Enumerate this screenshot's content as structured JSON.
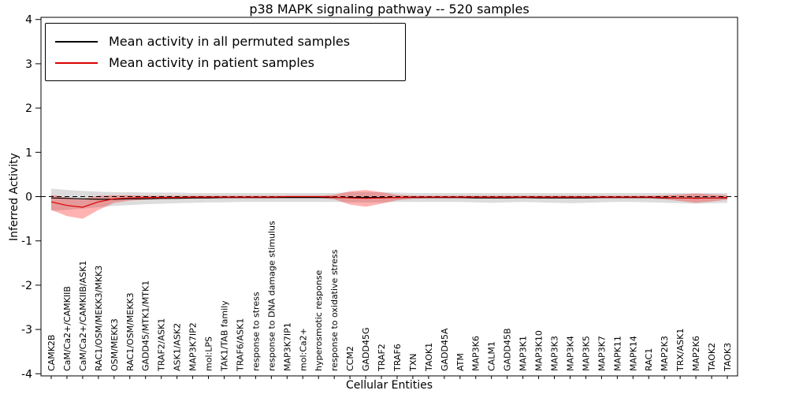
{
  "figure": {
    "title": "p38 MAPK signaling pathway -- 520 samples",
    "xlabel": "Cellular Entities",
    "ylabel": "Inferred Activity"
  },
  "legend": {
    "items": [
      {
        "label": "Mean activity in all permuted samples",
        "color": "#000000"
      },
      {
        "label": "Mean activity in patient samples",
        "color": "#dd0000"
      }
    ]
  },
  "chart_data": {
    "type": "line",
    "title": "p38 MAPK signaling pathway -- 520 samples",
    "xlabel": "Cellular Entities",
    "ylabel": "Inferred Activity",
    "ylim": [
      -4,
      4
    ],
    "yticks": [
      -4,
      -3,
      -2,
      -1,
      0,
      1,
      2,
      3,
      4
    ],
    "grid": false,
    "legend_position": "upper left",
    "zero_line": {
      "style": "dashed",
      "color": "#000000",
      "y": 0
    },
    "categories": [
      "CAMK2B",
      "CaM/Ca2+/CAMKIIB",
      "CaM/Ca2+/CAMKIIB/ASK1",
      "RAC1/OSM/MEKK3/MKK3",
      "OSM/MEKK3",
      "RAC1/OSM/MEKK3",
      "GADD45/MTK1/MTK1",
      "TRAF2/ASK1",
      "ASK1/ASK2",
      "MAP3K7IP2",
      "mol:LPS",
      "TAK1/TAB family",
      "TRAF6/ASK1",
      "response to stress",
      "response to DNA damage stimulus",
      "MAP3K7IP1",
      "mol:Ca2+",
      "hyperosmotic response",
      "response to oxidative stress",
      "CCM2",
      "GADD45G",
      "TRAF2",
      "TRAF6",
      "TXN",
      "TAOK1",
      "GADD45A",
      "ATM",
      "MAP3K6",
      "CALM1",
      "GADD45B",
      "MAP3K1",
      "MAP3K10",
      "MAP3K3",
      "MAP3K4",
      "MAP3K5",
      "MAP3K7",
      "MAPK11",
      "MAPK14",
      "RAC1",
      "MAP2K3",
      "TRX/ASK1",
      "MAP2K6",
      "TAOK2",
      "TAOK3"
    ],
    "series": [
      {
        "key": "permuted_mean",
        "name": "Mean activity in all permuted samples",
        "color": "#000000",
        "values": [
          -0.03,
          -0.04,
          -0.05,
          -0.06,
          -0.06,
          -0.05,
          -0.05,
          -0.04,
          -0.04,
          -0.03,
          -0.03,
          -0.02,
          -0.02,
          -0.02,
          -0.02,
          -0.02,
          -0.02,
          -0.02,
          -0.02,
          -0.02,
          -0.02,
          -0.02,
          -0.02,
          -0.02,
          -0.02,
          -0.02,
          -0.02,
          -0.03,
          -0.03,
          -0.03,
          -0.02,
          -0.03,
          -0.03,
          -0.03,
          -0.03,
          -0.02,
          -0.02,
          -0.02,
          -0.02,
          -0.03,
          -0.03,
          -0.03,
          -0.03,
          -0.03
        ]
      },
      {
        "key": "patient_mean",
        "name": "Mean activity in patient samples",
        "color": "#dd0000",
        "values": [
          -0.12,
          -0.2,
          -0.24,
          -0.12,
          -0.05,
          -0.03,
          -0.02,
          -0.02,
          -0.02,
          -0.01,
          -0.01,
          -0.01,
          -0.01,
          -0.01,
          -0.01,
          0.0,
          0.0,
          0.0,
          -0.01,
          -0.03,
          -0.04,
          -0.03,
          -0.02,
          -0.01,
          -0.01,
          -0.01,
          -0.01,
          -0.01,
          -0.01,
          -0.01,
          -0.01,
          -0.01,
          -0.01,
          -0.01,
          -0.01,
          -0.01,
          -0.01,
          -0.01,
          -0.01,
          -0.02,
          -0.03,
          -0.04,
          -0.03,
          -0.02
        ]
      }
    ],
    "bands": [
      {
        "key": "permuted_range",
        "name": "permuted-samples-range",
        "color": "#bfbfbf",
        "opacity": 0.55,
        "upper": [
          0.18,
          0.15,
          0.13,
          0.11,
          0.1,
          0.1,
          0.09,
          0.09,
          0.09,
          0.08,
          0.08,
          0.08,
          0.08,
          0.08,
          0.08,
          0.08,
          0.08,
          0.08,
          0.08,
          0.1,
          0.1,
          0.1,
          0.09,
          0.08,
          0.08,
          0.08,
          0.08,
          0.08,
          0.08,
          0.08,
          0.08,
          0.08,
          0.08,
          0.08,
          0.08,
          0.08,
          0.08,
          0.08,
          0.08,
          0.08,
          0.08,
          0.08,
          0.08,
          0.08
        ],
        "lower": [
          -0.32,
          -0.3,
          -0.27,
          -0.24,
          -0.21,
          -0.19,
          -0.17,
          -0.16,
          -0.15,
          -0.14,
          -0.13,
          -0.13,
          -0.12,
          -0.12,
          -0.12,
          -0.12,
          -0.12,
          -0.12,
          -0.12,
          -0.13,
          -0.13,
          -0.13,
          -0.12,
          -0.12,
          -0.12,
          -0.12,
          -0.12,
          -0.13,
          -0.14,
          -0.13,
          -0.12,
          -0.13,
          -0.14,
          -0.15,
          -0.14,
          -0.13,
          -0.12,
          -0.12,
          -0.13,
          -0.14,
          -0.15,
          -0.16,
          -0.15,
          -0.14
        ]
      },
      {
        "key": "patient_range",
        "name": "patient-samples-range",
        "color": "#ff0000",
        "opacity": 0.3,
        "upper": [
          0.04,
          -0.02,
          -0.05,
          0.02,
          0.03,
          0.03,
          0.02,
          0.02,
          0.02,
          0.02,
          0.02,
          0.02,
          0.02,
          0.02,
          0.02,
          0.02,
          0.02,
          0.02,
          0.04,
          0.12,
          0.15,
          0.1,
          0.04,
          0.02,
          0.02,
          0.02,
          0.02,
          0.02,
          0.02,
          0.02,
          0.02,
          0.02,
          0.02,
          0.02,
          0.02,
          0.02,
          0.02,
          0.02,
          0.02,
          0.03,
          0.05,
          0.07,
          0.05,
          0.03
        ],
        "lower": [
          -0.3,
          -0.44,
          -0.5,
          -0.3,
          -0.14,
          -0.09,
          -0.07,
          -0.06,
          -0.05,
          -0.05,
          -0.04,
          -0.04,
          -0.04,
          -0.04,
          -0.04,
          -0.03,
          -0.03,
          -0.03,
          -0.06,
          -0.18,
          -0.23,
          -0.16,
          -0.08,
          -0.05,
          -0.04,
          -0.04,
          -0.04,
          -0.04,
          -0.04,
          -0.04,
          -0.04,
          -0.04,
          -0.04,
          -0.04,
          -0.04,
          -0.04,
          -0.04,
          -0.04,
          -0.04,
          -0.06,
          -0.1,
          -0.14,
          -0.11,
          -0.07
        ]
      }
    ]
  }
}
